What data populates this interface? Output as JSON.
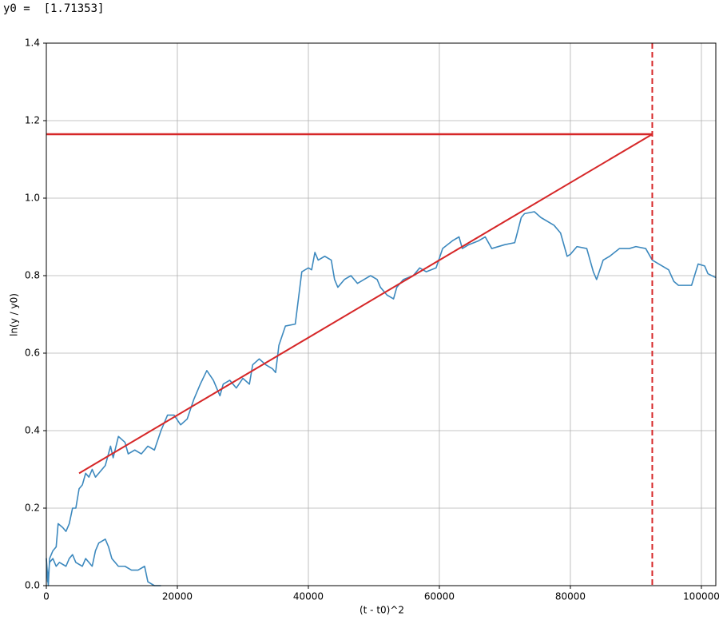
{
  "output_text": "y0 =  [1.71353]",
  "chart_data": {
    "type": "line",
    "xlabel": "(t - t0)^2",
    "ylabel": "ln(y / y0)",
    "xlim": [
      0,
      102200
    ],
    "ylim": [
      0,
      1.4
    ],
    "xticks": [
      0,
      20000,
      40000,
      60000,
      80000,
      100000
    ],
    "yticks": [
      {
        "value": 0,
        "label": "0.0"
      },
      0.2,
      0.4,
      0.6,
      0.8,
      {
        "value": 1,
        "label": "1.0"
      },
      1.2,
      1.4
    ],
    "grid": true,
    "series": [
      {
        "color": "#3d89be",
        "width": 1.6,
        "x": [
          17500,
          16500,
          15500,
          15000,
          14000,
          13000,
          12000,
          11000,
          10000,
          9500,
          9000,
          8000,
          7500,
          7000,
          6000,
          5500,
          4500,
          4000,
          3500,
          3000,
          2000,
          1500,
          1000,
          500,
          200,
          0,
          300,
          500,
          1000,
          1500,
          1800,
          2500,
          3000,
          3500,
          4000,
          4500,
          5000,
          5500,
          6000,
          6500,
          7000,
          7500,
          8000,
          9000,
          9800,
          10200,
          11000,
          12000,
          12500,
          13500,
          14500,
          15500,
          16500,
          17500,
          18500,
          19500,
          20500,
          21500,
          22500,
          23500,
          24500,
          25500,
          26500,
          27000,
          28000,
          29000,
          30000,
          31000,
          31500,
          32500,
          33500,
          34500,
          35000,
          35500,
          36500,
          38000,
          39000,
          40000,
          40500,
          41000,
          41500,
          42500,
          43500,
          44000,
          44500,
          45500,
          46500,
          47500,
          48500,
          49500,
          50500,
          51000,
          52000,
          53000,
          53500,
          54500,
          56000,
          57000,
          58000,
          59500,
          60500,
          62000,
          63000,
          63500,
          64500,
          66000,
          67000,
          68000,
          70000,
          71500,
          72500,
          73000,
          74500,
          75500,
          77500,
          78500,
          79500,
          80000,
          81000,
          82500,
          83500,
          84000,
          85000,
          86000,
          87500,
          89000,
          90000,
          91500,
          92000,
          92500,
          93500,
          95000,
          95800,
          96500,
          98500,
          99500,
          100500,
          101000,
          102200
        ],
        "values": [
          0.0,
          0.0,
          0.01,
          0.05,
          0.04,
          0.04,
          0.05,
          0.05,
          0.07,
          0.1,
          0.12,
          0.11,
          0.09,
          0.05,
          0.07,
          0.05,
          0.06,
          0.08,
          0.07,
          0.05,
          0.06,
          0.05,
          0.07,
          0.06,
          0.01,
          0.07,
          0.0,
          0.07,
          0.09,
          0.1,
          0.16,
          0.15,
          0.14,
          0.16,
          0.2,
          0.2,
          0.25,
          0.26,
          0.29,
          0.28,
          0.3,
          0.28,
          0.29,
          0.31,
          0.36,
          0.33,
          0.385,
          0.37,
          0.34,
          0.35,
          0.34,
          0.36,
          0.35,
          0.4,
          0.44,
          0.44,
          0.415,
          0.43,
          0.48,
          0.52,
          0.555,
          0.53,
          0.49,
          0.52,
          0.53,
          0.51,
          0.535,
          0.52,
          0.57,
          0.585,
          0.57,
          0.56,
          0.55,
          0.62,
          0.67,
          0.675,
          0.81,
          0.82,
          0.815,
          0.86,
          0.84,
          0.85,
          0.84,
          0.79,
          0.77,
          0.79,
          0.8,
          0.78,
          0.79,
          0.8,
          0.79,
          0.77,
          0.75,
          0.74,
          0.77,
          0.79,
          0.8,
          0.82,
          0.81,
          0.82,
          0.87,
          0.89,
          0.9,
          0.87,
          0.88,
          0.89,
          0.9,
          0.87,
          0.88,
          0.885,
          0.95,
          0.96,
          0.965,
          0.95,
          0.93,
          0.91,
          0.85,
          0.855,
          0.875,
          0.87,
          0.81,
          0.79,
          0.84,
          0.85,
          0.87,
          0.87,
          0.875,
          0.87,
          0.855,
          0.84,
          0.83,
          0.815,
          0.785,
          0.775,
          0.775,
          0.83,
          0.825,
          0.805,
          0.795
        ]
      },
      {
        "color": "#d62728",
        "width": 2,
        "x": [
          5000,
          92500
        ],
        "values": [
          0.29,
          1.165
        ]
      },
      {
        "color": "#d62728",
        "width": 2.5,
        "x": [
          0,
          92500
        ],
        "values": [
          1.165,
          1.165
        ]
      }
    ],
    "vlines": [
      {
        "x": 92500,
        "color": "#d62728",
        "dashed": true
      }
    ]
  }
}
